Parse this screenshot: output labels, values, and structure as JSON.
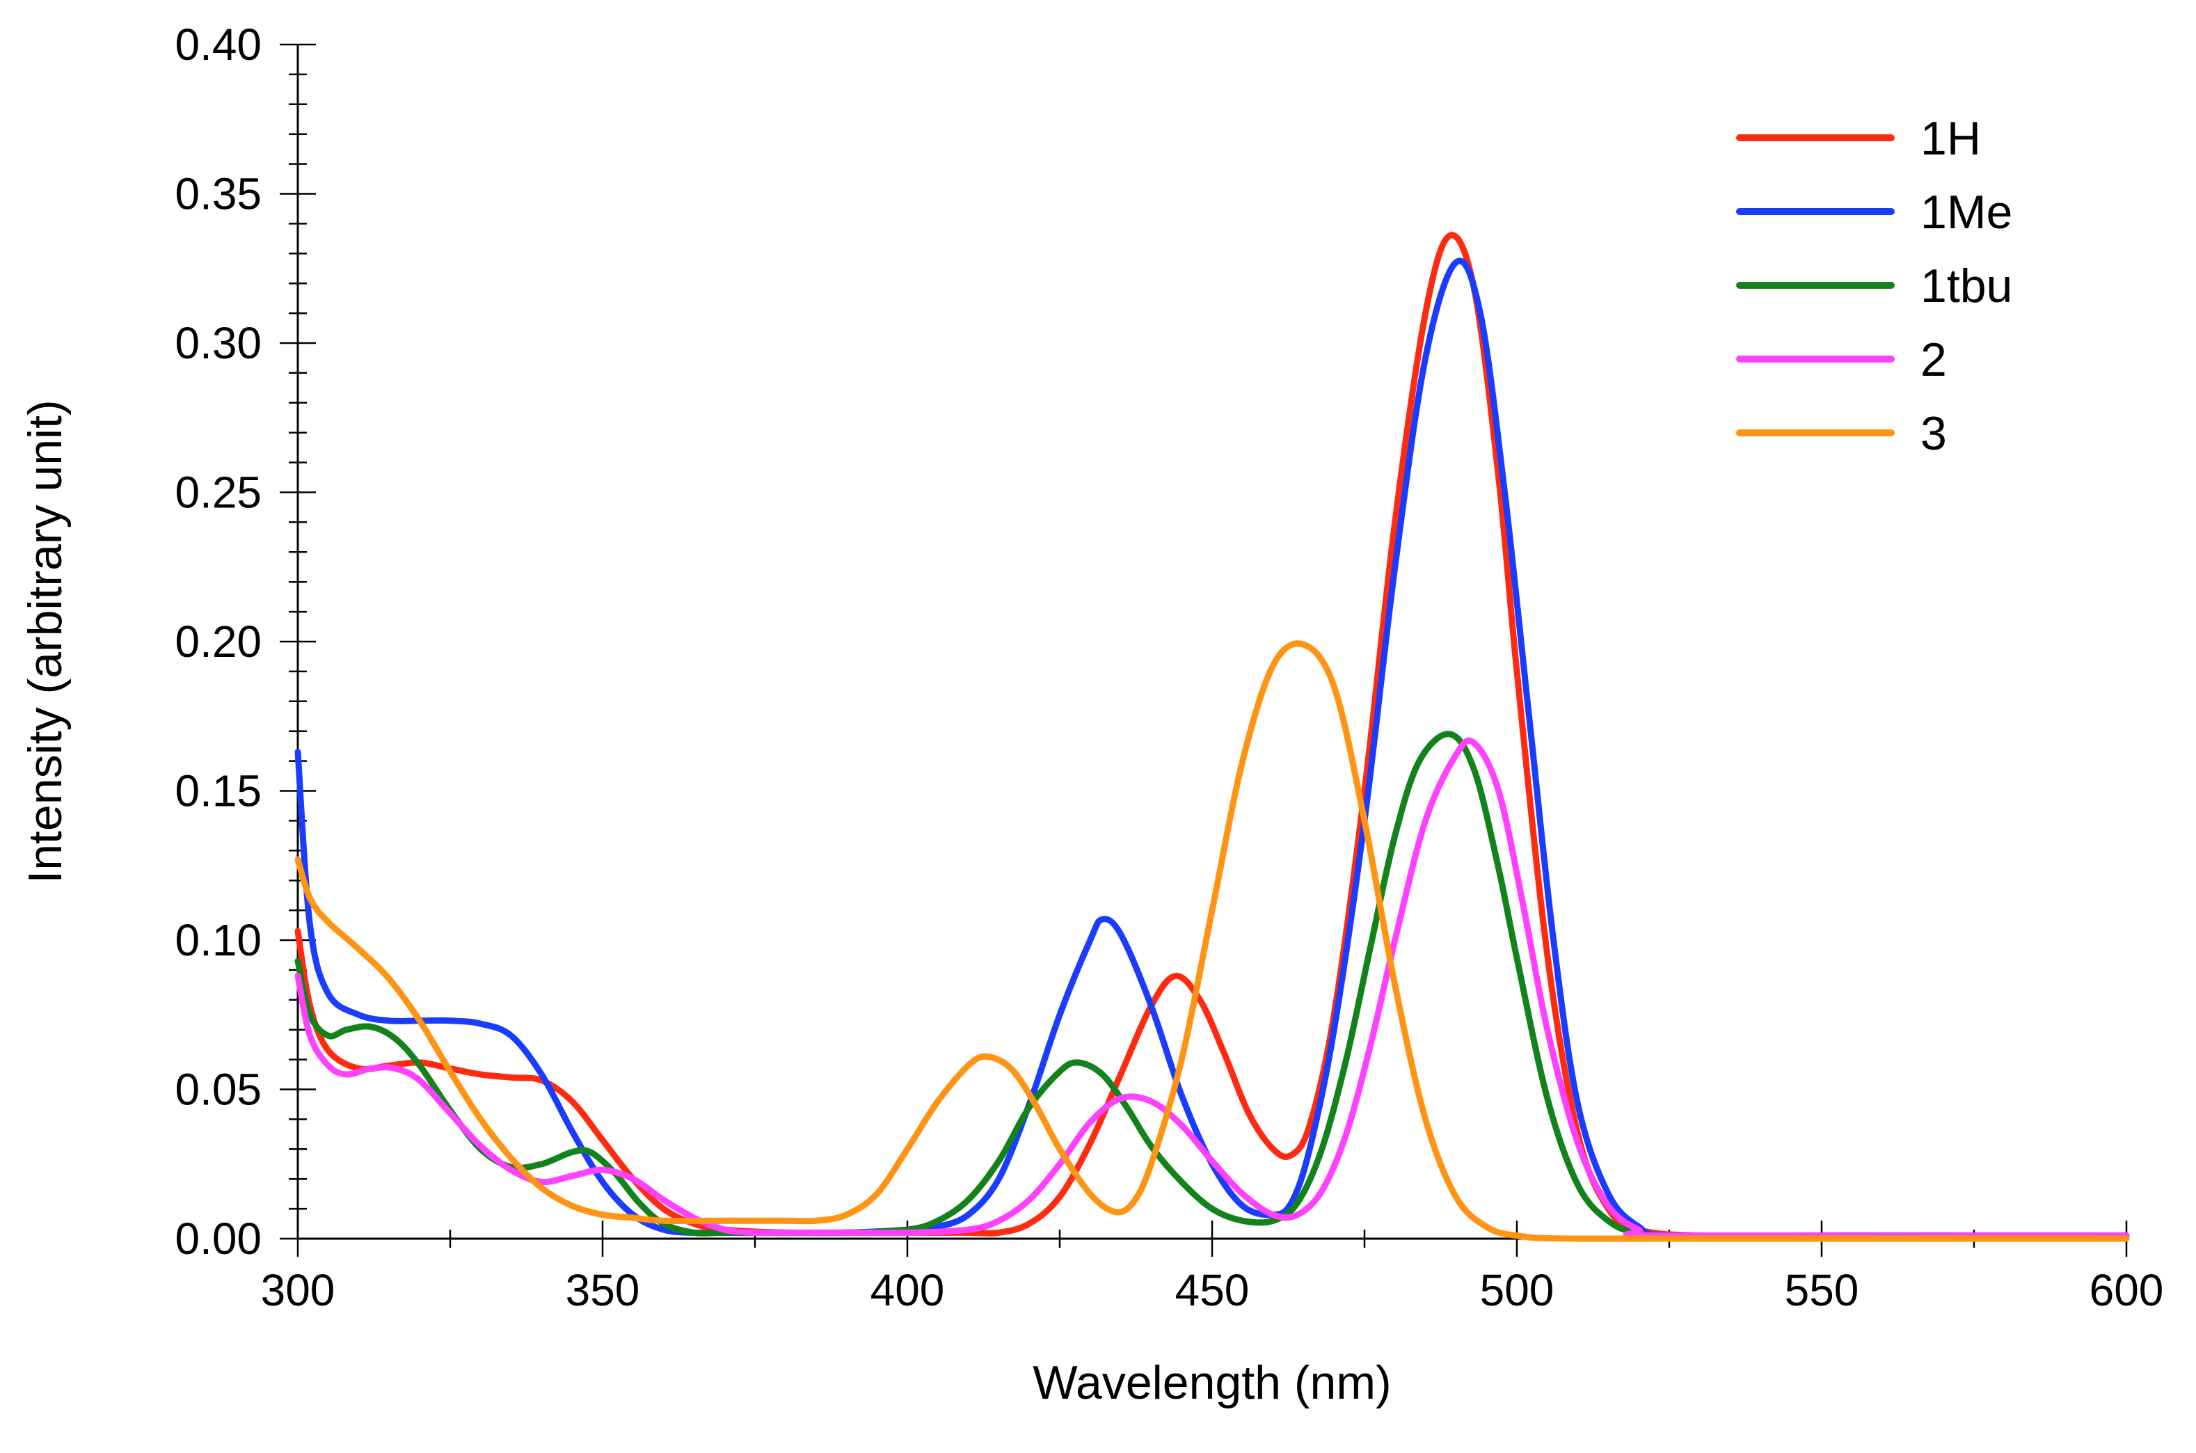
{
  "chart_data": {
    "type": "line",
    "title": "",
    "xlabel": "Wavelength (nm)",
    "ylabel": "Intensity (arbitrary unit)",
    "xlim": [
      300,
      600
    ],
    "ylim": [
      0,
      0.4
    ],
    "x_ticks": [
      300,
      350,
      400,
      450,
      500,
      550,
      600
    ],
    "x_tick_labels": [
      "300",
      "350",
      "400",
      "450",
      "500",
      "550",
      "600"
    ],
    "y_ticks": [
      0,
      0.05,
      0.1,
      0.15,
      0.2,
      0.25,
      0.3,
      0.35,
      0.4
    ],
    "y_tick_labels": [
      "0.00",
      "0.05",
      "0.10",
      "0.15",
      "0.20",
      "0.25",
      "0.30",
      "0.35",
      "0.40"
    ],
    "grid": false,
    "legend_position": "top-right",
    "series": [
      {
        "name": "1H",
        "color": "#ff2a10",
        "points": [
          [
            300,
            0.103
          ],
          [
            302,
            0.078
          ],
          [
            305,
            0.063
          ],
          [
            310,
            0.057
          ],
          [
            315,
            0.058
          ],
          [
            320,
            0.059
          ],
          [
            325,
            0.057
          ],
          [
            330,
            0.055
          ],
          [
            335,
            0.054
          ],
          [
            340,
            0.053
          ],
          [
            345,
            0.046
          ],
          [
            350,
            0.033
          ],
          [
            355,
            0.02
          ],
          [
            360,
            0.01
          ],
          [
            365,
            0.005
          ],
          [
            370,
            0.003
          ],
          [
            380,
            0.002
          ],
          [
            390,
            0.002
          ],
          [
            400,
            0.002
          ],
          [
            410,
            0.002
          ],
          [
            415,
            0.002
          ],
          [
            420,
            0.005
          ],
          [
            425,
            0.014
          ],
          [
            430,
            0.032
          ],
          [
            435,
            0.055
          ],
          [
            440,
            0.078
          ],
          [
            444,
            0.088
          ],
          [
            448,
            0.08
          ],
          [
            452,
            0.062
          ],
          [
            456,
            0.042
          ],
          [
            460,
            0.03
          ],
          [
            463,
            0.028
          ],
          [
            466,
            0.038
          ],
          [
            470,
            0.075
          ],
          [
            475,
            0.15
          ],
          [
            480,
            0.24
          ],
          [
            485,
            0.31
          ],
          [
            489,
            0.336
          ],
          [
            493,
            0.318
          ],
          [
            497,
            0.255
          ],
          [
            500,
            0.19
          ],
          [
            505,
            0.095
          ],
          [
            510,
            0.035
          ],
          [
            515,
            0.01
          ],
          [
            520,
            0.003
          ],
          [
            530,
            0.001
          ],
          [
            550,
            0.001
          ],
          [
            600,
            0.001
          ]
        ]
      },
      {
        "name": "1Me",
        "color": "#1a3cff",
        "points": [
          [
            300,
            0.163
          ],
          [
            302,
            0.105
          ],
          [
            305,
            0.082
          ],
          [
            310,
            0.075
          ],
          [
            315,
            0.073
          ],
          [
            320,
            0.073
          ],
          [
            325,
            0.073
          ],
          [
            330,
            0.072
          ],
          [
            335,
            0.068
          ],
          [
            340,
            0.055
          ],
          [
            345,
            0.036
          ],
          [
            350,
            0.019
          ],
          [
            355,
            0.008
          ],
          [
            360,
            0.003
          ],
          [
            365,
            0.002
          ],
          [
            370,
            0.002
          ],
          [
            380,
            0.002
          ],
          [
            390,
            0.002
          ],
          [
            400,
            0.003
          ],
          [
            405,
            0.004
          ],
          [
            410,
            0.008
          ],
          [
            415,
            0.02
          ],
          [
            420,
            0.045
          ],
          [
            425,
            0.075
          ],
          [
            430,
            0.1
          ],
          [
            432,
            0.107
          ],
          [
            435,
            0.102
          ],
          [
            440,
            0.078
          ],
          [
            445,
            0.048
          ],
          [
            450,
            0.025
          ],
          [
            455,
            0.011
          ],
          [
            460,
            0.008
          ],
          [
            463,
            0.012
          ],
          [
            466,
            0.03
          ],
          [
            470,
            0.07
          ],
          [
            475,
            0.14
          ],
          [
            480,
            0.225
          ],
          [
            485,
            0.295
          ],
          [
            490,
            0.327
          ],
          [
            494,
            0.31
          ],
          [
            498,
            0.25
          ],
          [
            502,
            0.175
          ],
          [
            506,
            0.1
          ],
          [
            510,
            0.045
          ],
          [
            515,
            0.015
          ],
          [
            520,
            0.004
          ],
          [
            525,
            0.001
          ],
          [
            550,
            0.001
          ],
          [
            600,
            0.001
          ]
        ]
      },
      {
        "name": "1tbu",
        "color": "#12821a",
        "points": [
          [
            300,
            0.093
          ],
          [
            302,
            0.075
          ],
          [
            305,
            0.068
          ],
          [
            308,
            0.07
          ],
          [
            312,
            0.071
          ],
          [
            316,
            0.067
          ],
          [
            320,
            0.058
          ],
          [
            325,
            0.043
          ],
          [
            330,
            0.03
          ],
          [
            335,
            0.024
          ],
          [
            340,
            0.025
          ],
          [
            345,
            0.029
          ],
          [
            348,
            0.029
          ],
          [
            352,
            0.022
          ],
          [
            356,
            0.012
          ],
          [
            360,
            0.005
          ],
          [
            365,
            0.002
          ],
          [
            370,
            0.002
          ],
          [
            380,
            0.002
          ],
          [
            390,
            0.002
          ],
          [
            400,
            0.003
          ],
          [
            405,
            0.006
          ],
          [
            410,
            0.013
          ],
          [
            415,
            0.026
          ],
          [
            420,
            0.044
          ],
          [
            425,
            0.056
          ],
          [
            428,
            0.059
          ],
          [
            432,
            0.055
          ],
          [
            436,
            0.044
          ],
          [
            440,
            0.031
          ],
          [
            445,
            0.019
          ],
          [
            450,
            0.01
          ],
          [
            455,
            0.006
          ],
          [
            460,
            0.006
          ],
          [
            464,
            0.012
          ],
          [
            468,
            0.03
          ],
          [
            472,
            0.06
          ],
          [
            476,
            0.098
          ],
          [
            480,
            0.135
          ],
          [
            484,
            0.16
          ],
          [
            489,
            0.169
          ],
          [
            493,
            0.157
          ],
          [
            497,
            0.124
          ],
          [
            500,
            0.094
          ],
          [
            505,
            0.047
          ],
          [
            510,
            0.018
          ],
          [
            515,
            0.006
          ],
          [
            520,
            0.002
          ],
          [
            530,
            0.001
          ],
          [
            600,
            0.001
          ]
        ]
      },
      {
        "name": "2",
        "color": "#ff40ff",
        "points": [
          [
            300,
            0.088
          ],
          [
            302,
            0.068
          ],
          [
            305,
            0.058
          ],
          [
            308,
            0.055
          ],
          [
            312,
            0.057
          ],
          [
            316,
            0.057
          ],
          [
            320,
            0.053
          ],
          [
            325,
            0.042
          ],
          [
            330,
            0.031
          ],
          [
            335,
            0.023
          ],
          [
            340,
            0.019
          ],
          [
            345,
            0.021
          ],
          [
            350,
            0.023
          ],
          [
            355,
            0.02
          ],
          [
            360,
            0.013
          ],
          [
            365,
            0.007
          ],
          [
            370,
            0.003
          ],
          [
            375,
            0.002
          ],
          [
            380,
            0.002
          ],
          [
            390,
            0.002
          ],
          [
            400,
            0.002
          ],
          [
            410,
            0.003
          ],
          [
            415,
            0.006
          ],
          [
            420,
            0.013
          ],
          [
            425,
            0.025
          ],
          [
            430,
            0.039
          ],
          [
            435,
            0.047
          ],
          [
            440,
            0.046
          ],
          [
            445,
            0.038
          ],
          [
            450,
            0.026
          ],
          [
            455,
            0.015
          ],
          [
            460,
            0.008
          ],
          [
            464,
            0.008
          ],
          [
            468,
            0.016
          ],
          [
            472,
            0.035
          ],
          [
            476,
            0.065
          ],
          [
            480,
            0.1
          ],
          [
            485,
            0.14
          ],
          [
            490,
            0.162
          ],
          [
            493,
            0.166
          ],
          [
            497,
            0.15
          ],
          [
            501,
            0.112
          ],
          [
            505,
            0.07
          ],
          [
            510,
            0.032
          ],
          [
            515,
            0.011
          ],
          [
            520,
            0.003
          ],
          [
            525,
            0.001
          ],
          [
            600,
            0.001
          ]
        ]
      },
      {
        "name": "3",
        "color": "#ff9414",
        "points": [
          [
            300,
            0.127
          ],
          [
            302,
            0.114
          ],
          [
            305,
            0.106
          ],
          [
            310,
            0.097
          ],
          [
            315,
            0.087
          ],
          [
            320,
            0.073
          ],
          [
            325,
            0.056
          ],
          [
            330,
            0.04
          ],
          [
            335,
            0.027
          ],
          [
            340,
            0.017
          ],
          [
            345,
            0.011
          ],
          [
            350,
            0.008
          ],
          [
            355,
            0.007
          ],
          [
            360,
            0.006
          ],
          [
            370,
            0.006
          ],
          [
            380,
            0.006
          ],
          [
            385,
            0.006
          ],
          [
            390,
            0.008
          ],
          [
            395,
            0.015
          ],
          [
            400,
            0.03
          ],
          [
            405,
            0.046
          ],
          [
            410,
            0.058
          ],
          [
            413,
            0.061
          ],
          [
            417,
            0.057
          ],
          [
            421,
            0.045
          ],
          [
            425,
            0.03
          ],
          [
            430,
            0.015
          ],
          [
            434,
            0.009
          ],
          [
            437,
            0.012
          ],
          [
            440,
            0.025
          ],
          [
            445,
            0.06
          ],
          [
            450,
            0.11
          ],
          [
            455,
            0.16
          ],
          [
            460,
            0.192
          ],
          [
            465,
            0.199
          ],
          [
            470,
            0.185
          ],
          [
            475,
            0.14
          ],
          [
            480,
            0.085
          ],
          [
            485,
            0.04
          ],
          [
            490,
            0.014
          ],
          [
            495,
            0.004
          ],
          [
            500,
            0.001
          ],
          [
            510,
            0.0
          ],
          [
            550,
            0.0
          ],
          [
            600,
            0.0
          ]
        ]
      }
    ]
  }
}
